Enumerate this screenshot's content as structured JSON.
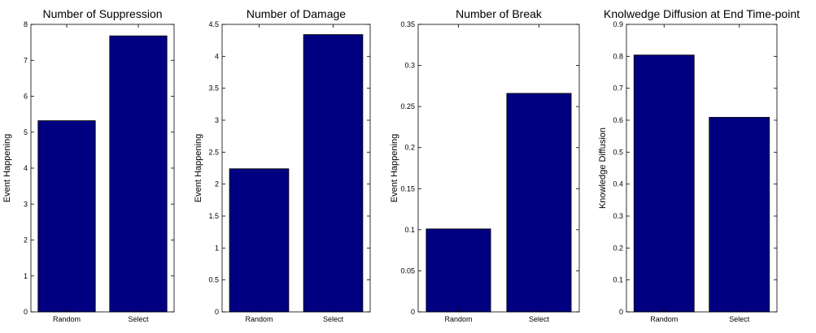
{
  "colors": {
    "bar": "#000080",
    "axis": "#000000",
    "background": "#ffffff"
  },
  "chart_data": [
    {
      "type": "bar",
      "title": "Number of Suppression",
      "ylabel": "Event Happening",
      "categories": [
        "Random",
        "Select"
      ],
      "values": [
        5.32,
        7.68
      ],
      "ylim": [
        0,
        8
      ],
      "yticks": [
        0,
        1,
        2,
        3,
        4,
        5,
        6,
        7,
        8
      ],
      "ytick_labels": [
        "0",
        "1",
        "2",
        "3",
        "4",
        "5",
        "6",
        "7",
        "8"
      ],
      "grid": false
    },
    {
      "type": "bar",
      "title": "Number of Damage",
      "ylabel": "Event Happening",
      "categories": [
        "Random",
        "Select"
      ],
      "values": [
        2.24,
        4.34
      ],
      "ylim": [
        0,
        4.5
      ],
      "yticks": [
        0,
        0.5,
        1,
        1.5,
        2,
        2.5,
        3,
        3.5,
        4,
        4.5
      ],
      "ytick_labels": [
        "0",
        "0.5",
        "1",
        "1.5",
        "2",
        "2.5",
        "3",
        "3.5",
        "4",
        "4.5"
      ],
      "grid": false
    },
    {
      "type": "bar",
      "title": "Number of Break",
      "ylabel": "Event Happening",
      "categories": [
        "Random",
        "Select"
      ],
      "values": [
        0.101,
        0.266
      ],
      "ylim": [
        0,
        0.35
      ],
      "yticks": [
        0,
        0.05,
        0.1,
        0.15,
        0.2,
        0.25,
        0.3,
        0.35
      ],
      "ytick_labels": [
        "0",
        "0.05",
        "0.1",
        "0.15",
        "0.2",
        "0.25",
        "0.3",
        "0.35"
      ],
      "grid": false
    },
    {
      "type": "bar",
      "title": "Knolwedge Diffusion at End Time-point",
      "ylabel": "Knowledge Diffusion",
      "categories": [
        "Random",
        "Select"
      ],
      "values": [
        0.804,
        0.609
      ],
      "ylim": [
        0,
        0.9
      ],
      "yticks": [
        0,
        0.1,
        0.2,
        0.3,
        0.4,
        0.5,
        0.6,
        0.7,
        0.8,
        0.9
      ],
      "ytick_labels": [
        "0",
        "0.1",
        "0.2",
        "0.3",
        "0.4",
        "0.5",
        "0.6",
        "0.7",
        "0.8",
        "0.9"
      ],
      "grid": false
    }
  ]
}
